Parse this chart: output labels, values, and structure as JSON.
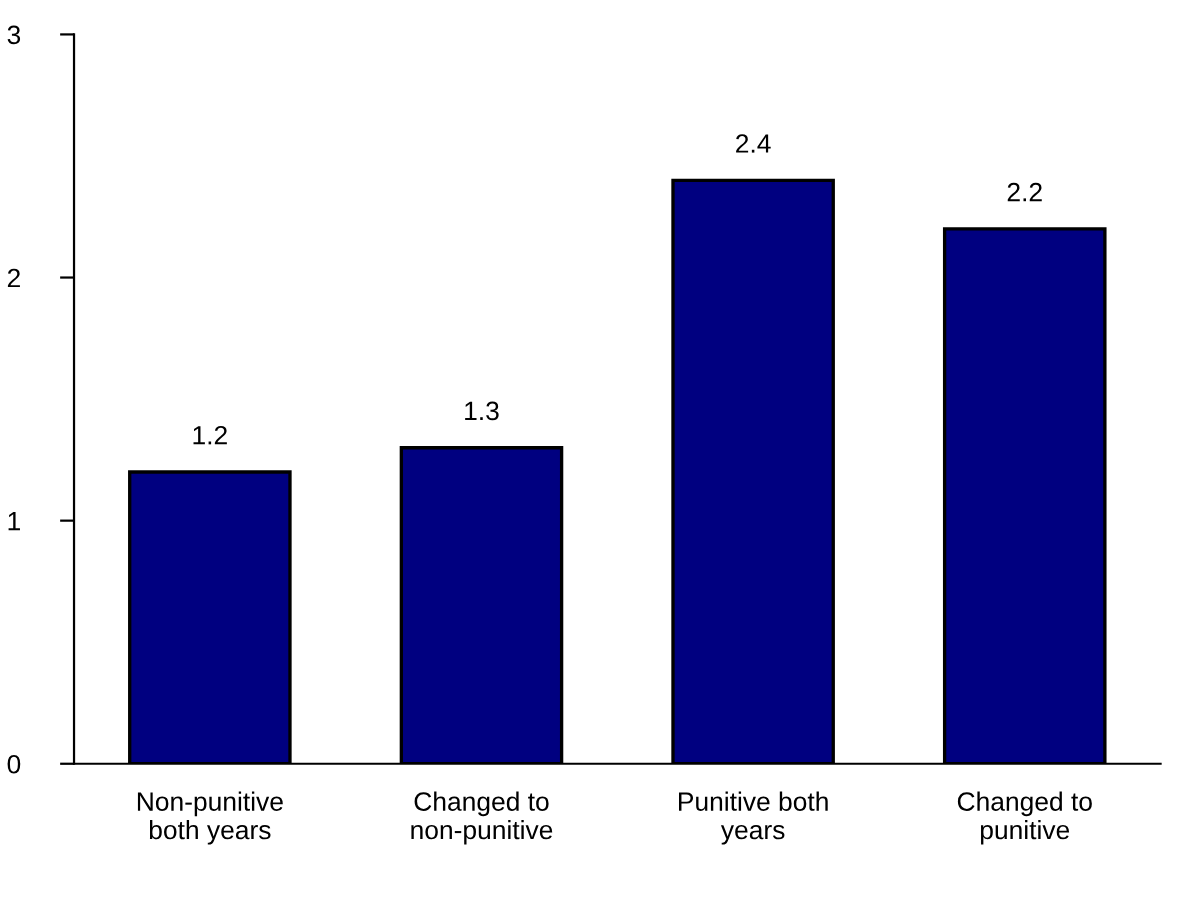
{
  "chart_data": {
    "type": "bar",
    "categories": [
      "Non-punitive\nboth years",
      "Changed to\nnon-punitive",
      "Punitive both\nyears",
      "Changed to\npunitive"
    ],
    "values": [
      1.2,
      1.3,
      2.4,
      2.2
    ],
    "color": "#000080",
    "ylim": [
      0,
      3
    ],
    "yticks": [
      0,
      1,
      2,
      3
    ],
    "data_labels": true,
    "grid": false,
    "legend": false
  }
}
